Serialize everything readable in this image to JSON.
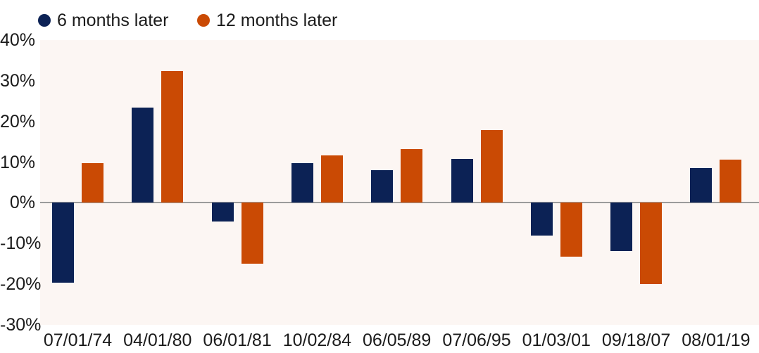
{
  "colors": {
    "navy": "#0c2255",
    "orange": "#ca4a04",
    "plot_bg": "#fcf6f3",
    "zero_line": "#9b9b9b",
    "text": "#1b1b1b",
    "page_bg": "#ffffff"
  },
  "legend": {
    "items": [
      {
        "label": "6 months later",
        "swatch": "navy-dot-icon"
      },
      {
        "label": "12 months later",
        "swatch": "orange-dot-icon"
      }
    ]
  },
  "chart_data": {
    "type": "bar",
    "title": "",
    "xlabel": "",
    "ylabel": "",
    "categories": [
      "07/01/74",
      "04/01/80",
      "06/01/81",
      "10/02/84",
      "06/05/89",
      "07/06/95",
      "01/03/01",
      "09/18/07",
      "08/01/19"
    ],
    "series": [
      {
        "name": "6 months later",
        "color_key": "navy",
        "values": [
          -19.6,
          23.4,
          -4.6,
          9.8,
          8.1,
          10.8,
          -8.1,
          -11.8,
          8.6
        ]
      },
      {
        "name": "12 months later",
        "color_key": "orange",
        "values": [
          9.7,
          32.4,
          -15.0,
          11.7,
          13.2,
          17.9,
          -13.2,
          -20.0,
          10.6
        ]
      }
    ],
    "value_unit": "%",
    "ylim": [
      -30,
      40
    ],
    "yticks": [
      {
        "value": 40,
        "label": "40%"
      },
      {
        "value": 30,
        "label": "30%"
      },
      {
        "value": 20,
        "label": "20%"
      },
      {
        "value": 10,
        "label": "10%"
      },
      {
        "value": 0,
        "label": "0%"
      },
      {
        "value": -10,
        "label": "-10%"
      },
      {
        "value": -20,
        "label": "-20%"
      },
      {
        "value": -30,
        "label": "-30%"
      }
    ],
    "grid": "zero-line-only",
    "legend_position": "top-left"
  }
}
